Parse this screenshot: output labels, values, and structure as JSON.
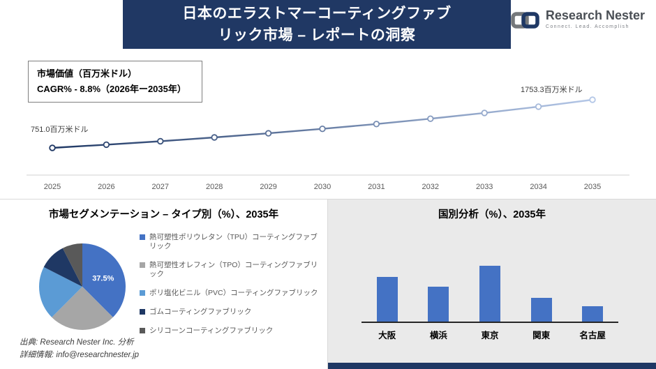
{
  "banner": {
    "title_line1": "日本のエラストマーコーティングファブ",
    "title_line2": "リック市場 – レポートの洞察"
  },
  "logo": {
    "name": "Research Nester",
    "tagline": "Connect. Lead. Accomplish",
    "icon": "interlocked-link-squares",
    "icon_colors": [
      "#75787b",
      "#1f3864"
    ]
  },
  "info_box": {
    "line1": "市場価値（百万米ドル）",
    "line2": "CAGR% - 8.8%（2026年ー2035年）"
  },
  "source": {
    "line1": "出典: Research Nester Inc. 分析",
    "line2": "詳細情報: info@researchnester.jp"
  },
  "colors": {
    "accent_navy": "#1f3864",
    "panel_gray": "#eaeaea"
  },
  "chart_data": [
    {
      "type": "line",
      "title": "市場価値（百万米ドル）",
      "x": [
        2025,
        2026,
        2027,
        2028,
        2029,
        2030,
        2031,
        2032,
        2033,
        2034,
        2035
      ],
      "values": [
        751.0,
        817.4,
        889.7,
        968.3,
        1053.9,
        1147.1,
        1248.5,
        1358.8,
        1478.9,
        1609.7,
        1753.3
      ],
      "first_label": "751.0百万米ドル",
      "last_label": "1753.3百万米ドル",
      "cagr": "8.8%",
      "line_color_start": "#1f3864",
      "line_color_end": "#b4c7e7",
      "marker": "open-circle",
      "grid": false
    },
    {
      "type": "pie",
      "title": "市場セグメンテーション – タイプ別（%）、2035年",
      "labels": [
        "熱可塑性ポリウレタン（TPU）コーティングファブリック",
        "熱可塑性オレフィン（TPO）コーティングファブリック",
        "ポリ塩化ビニル（PVC）コーティングファブリック",
        "ゴムコーティングファブリック",
        "シリコーンコーティングファブリック"
      ],
      "values": [
        37.5,
        25,
        20,
        10,
        7.5
      ],
      "colors": [
        "#4472c4",
        "#a6a6a6",
        "#5b9bd5",
        "#1f3864",
        "#595959"
      ],
      "data_label": "37.5%",
      "legend_position": "right"
    },
    {
      "type": "bar",
      "title": "国別分析（%）、2035年",
      "categories": [
        "大阪",
        "横浜",
        "東京",
        "関東",
        "名古屋"
      ],
      "values": [
        32,
        25,
        40,
        17,
        11
      ],
      "bar_color": "#4472c4",
      "ylim": [
        0,
        45
      ],
      "grid": false
    }
  ]
}
